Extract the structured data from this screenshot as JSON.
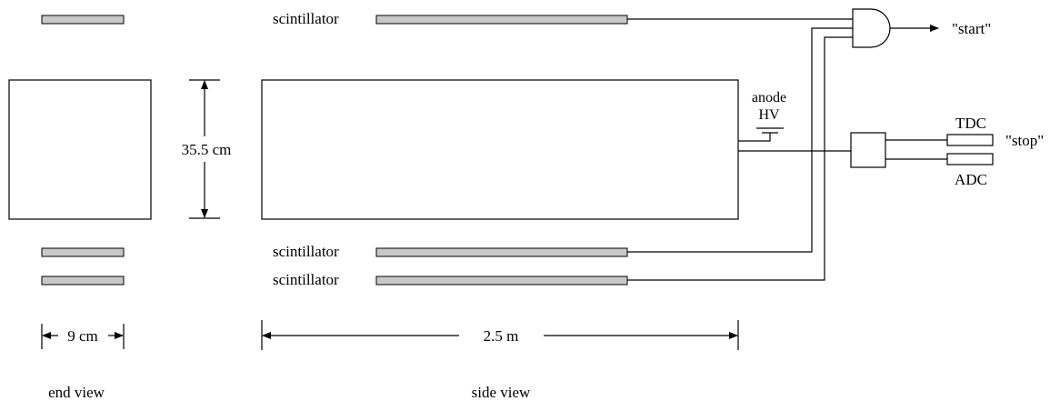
{
  "labels": {
    "scintillator_top": "scintillator",
    "scintillator_mid": "scintillator",
    "scintillator_bot": "scintillator",
    "anode": "anode",
    "hv": "HV",
    "height": "35.5 cm",
    "width": "9 cm",
    "length": "2.5 m",
    "start": "\"start\"",
    "stop": "\"stop\"",
    "tdc": "TDC",
    "adc": "ADC",
    "end_view": "end view",
    "side_view": "side view"
  }
}
